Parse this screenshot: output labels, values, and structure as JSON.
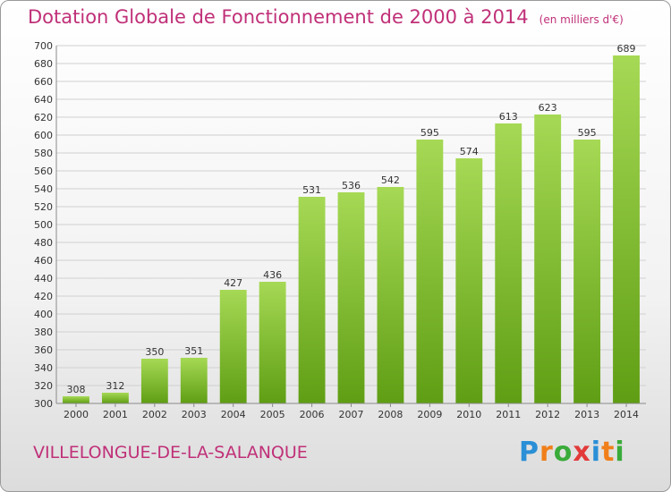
{
  "header": {
    "title": "Dotation Globale de Fonctionnement de 2000 à 2014",
    "subtitle": "(en milliers d'€)"
  },
  "footer": {
    "commune": "VILLELONGUE-DE-LA-SALANQUE",
    "logo_letters": [
      "P",
      "r",
      "o",
      "x",
      "i",
      "t",
      "i"
    ],
    "logo_colors": [
      "#2a8fd6",
      "#f07f1a",
      "#3aab3a",
      "#e23a3a",
      "#2a8fd6",
      "#f07f1a",
      "#3aab3a"
    ]
  },
  "chart_data": {
    "type": "bar",
    "title": "Dotation Globale de Fonctionnement de 2000 à 2014",
    "subtitle": "(en milliers d'€)",
    "categories": [
      "2000",
      "2001",
      "2002",
      "2003",
      "2004",
      "2005",
      "2006",
      "2007",
      "2008",
      "2009",
      "2010",
      "2011",
      "2012",
      "2013",
      "2014"
    ],
    "values": [
      308,
      312,
      350,
      351,
      427,
      436,
      531,
      536,
      542,
      595,
      574,
      613,
      623,
      595,
      689
    ],
    "data_labels": [
      "308",
      "312",
      "350",
      "351",
      "427",
      "436",
      "531",
      "536",
      "542",
      "595",
      "574",
      "613",
      "623",
      "595",
      "689"
    ],
    "yticks": [
      "300",
      "320",
      "340",
      "360",
      "380",
      "400",
      "420",
      "440",
      "460",
      "480",
      "500",
      "520",
      "540",
      "560",
      "580",
      "600",
      "620",
      "640",
      "660",
      "680",
      "700"
    ],
    "xlabel": "",
    "ylabel": "",
    "ylim": [
      300,
      700
    ],
    "grid": true,
    "bar_color": "#7cbf2a"
  }
}
